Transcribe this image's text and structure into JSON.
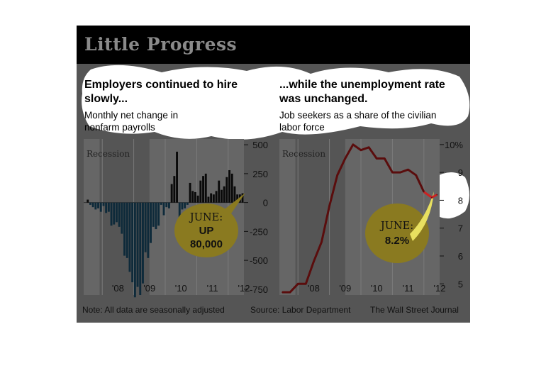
{
  "title": "Little Progress",
  "charts": {
    "payrolls": {
      "heading": "Employers continued to hire slowly...",
      "subheading": "Monthly net change in nonfarm payrolls",
      "recession_label": "Recession",
      "callout": {
        "line1": "JUNE:",
        "line2": "UP",
        "line3": "80,000"
      }
    },
    "unemployment": {
      "heading": "...while the unemployment rate was unchanged.",
      "subheading": "Job seekers as a share of the civilian labor force",
      "recession_label": "Recession",
      "callout": {
        "line1": "JUNE:",
        "line2": "8.2%"
      }
    }
  },
  "footer": {
    "note": "Note: All data are seasonally adjusted",
    "source": "Source: Labor Department",
    "credit": "The Wall Street Journal"
  },
  "colors": {
    "negative_bars": "#0e2a3a",
    "positive_bars": "#0a0a0a",
    "rate_line": "#5a0d0d",
    "rate_line_recent": "#cc2222",
    "callout_fill": "#8a7a20",
    "plot_bg": "#666666",
    "recession_shade": "#555555"
  },
  "chart_data": [
    {
      "type": "bar",
      "title": "Employers continued to hire slowly...",
      "ylabel": "Monthly net change in nonfarm payrolls",
      "ylim": [
        -800,
        550
      ],
      "yticks": [
        500,
        250,
        0,
        -250,
        -500,
        -750
      ],
      "yticklabels": [
        "500",
        "250",
        "0",
        "-250",
        "-500",
        "-750"
      ],
      "xticklabels": [
        "'08",
        "'09",
        "'10",
        "'11",
        "'12"
      ],
      "recession": [
        "2007-12",
        "2009-06"
      ],
      "x": [
        "2007-07",
        "2007-08",
        "2007-09",
        "2007-10",
        "2007-11",
        "2007-12",
        "2008-01",
        "2008-02",
        "2008-03",
        "2008-04",
        "2008-05",
        "2008-06",
        "2008-07",
        "2008-08",
        "2008-09",
        "2008-10",
        "2008-11",
        "2008-12",
        "2009-01",
        "2009-02",
        "2009-03",
        "2009-04",
        "2009-05",
        "2009-06",
        "2009-07",
        "2009-08",
        "2009-09",
        "2009-10",
        "2009-11",
        "2009-12",
        "2010-01",
        "2010-02",
        "2010-03",
        "2010-04",
        "2010-05",
        "2010-06",
        "2010-07",
        "2010-08",
        "2010-09",
        "2010-10",
        "2010-11",
        "2010-12",
        "2011-01",
        "2011-02",
        "2011-03",
        "2011-04",
        "2011-05",
        "2011-06",
        "2011-07",
        "2011-08",
        "2011-09",
        "2011-10",
        "2011-11",
        "2011-12",
        "2012-01",
        "2012-02",
        "2012-03",
        "2012-04",
        "2012-05",
        "2012-06"
      ],
      "values": [
        25,
        -20,
        -40,
        -60,
        -50,
        -80,
        -30,
        -90,
        -80,
        -200,
        -190,
        -170,
        -210,
        -270,
        -460,
        -480,
        -600,
        -690,
        -820,
        -730,
        -800,
        -700,
        -430,
        -480,
        -350,
        -210,
        -230,
        -200,
        -20,
        -110,
        -40,
        -50,
        160,
        230,
        440,
        -170,
        -60,
        -50,
        -20,
        170,
        100,
        90,
        60,
        190,
        230,
        250,
        50,
        80,
        70,
        100,
        190,
        110,
        140,
        220,
        280,
        250,
        140,
        70,
        70,
        80
      ]
    },
    {
      "type": "line",
      "title": "...while the unemployment rate was unchanged.",
      "ylabel": "Job seekers as a share of the civilian labor force",
      "ylim": [
        4.6,
        10.2
      ],
      "yticks": [
        10,
        9,
        8,
        7,
        6,
        5
      ],
      "yticklabels": [
        "10%",
        "9",
        "8",
        "7",
        "6",
        "5"
      ],
      "xticklabels": [
        "'08",
        "'09",
        "'10",
        "'11",
        "'12"
      ],
      "recession": [
        "2007-12",
        "2009-06"
      ],
      "x": [
        "2007-07",
        "2007-10",
        "2008-01",
        "2008-04",
        "2008-07",
        "2008-10",
        "2009-01",
        "2009-04",
        "2009-07",
        "2009-10",
        "2010-01",
        "2010-04",
        "2010-07",
        "2010-10",
        "2011-01",
        "2011-04",
        "2011-07",
        "2011-10",
        "2012-01",
        "2012-04",
        "2012-06"
      ],
      "values": [
        4.7,
        4.7,
        5.0,
        5.0,
        5.8,
        6.5,
        7.8,
        8.9,
        9.5,
        10.0,
        9.8,
        9.9,
        9.5,
        9.5,
        9.0,
        9.0,
        9.1,
        8.9,
        8.3,
        8.1,
        8.2
      ]
    }
  ]
}
